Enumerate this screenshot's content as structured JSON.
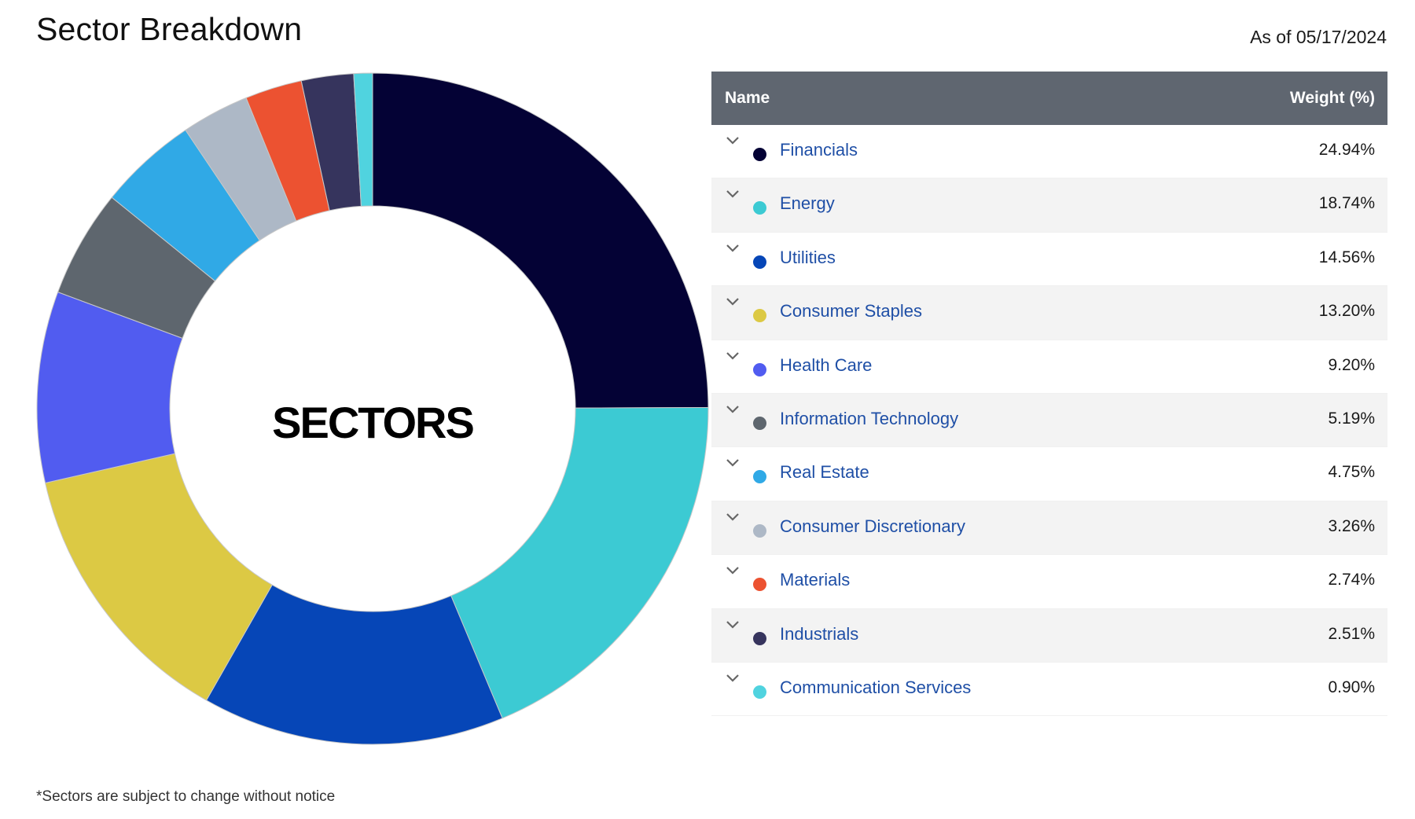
{
  "header": {
    "title": "Sector Breakdown",
    "as_of": "As of 05/17/2024"
  },
  "table": {
    "col_name": "Name",
    "col_weight": "Weight (%)"
  },
  "footnote": "*Sectors are subject to change without notice",
  "chart_data": {
    "type": "pie",
    "center_label": "SECTORS",
    "categories": [
      "Financials",
      "Energy",
      "Utilities",
      "Consumer Staples",
      "Health Care",
      "Information Technology",
      "Real Estate",
      "Consumer Discretionary",
      "Materials",
      "Industrials",
      "Communication Services"
    ],
    "values": [
      24.94,
      18.74,
      14.56,
      13.2,
      9.2,
      5.19,
      4.75,
      3.26,
      2.74,
      2.51,
      0.9
    ],
    "labels": [
      "24.94%",
      "18.74%",
      "14.56%",
      "13.20%",
      "9.20%",
      "5.19%",
      "4.75%",
      "3.26%",
      "2.74%",
      "2.51%",
      "0.90%"
    ],
    "colors": [
      "#040235",
      "#3ccad3",
      "#0646b7",
      "#dcc944",
      "#515cf0",
      "#5e666e",
      "#30a9e6",
      "#adb8c6",
      "#ec5231",
      "#36345d",
      "#50d3df"
    ]
  }
}
